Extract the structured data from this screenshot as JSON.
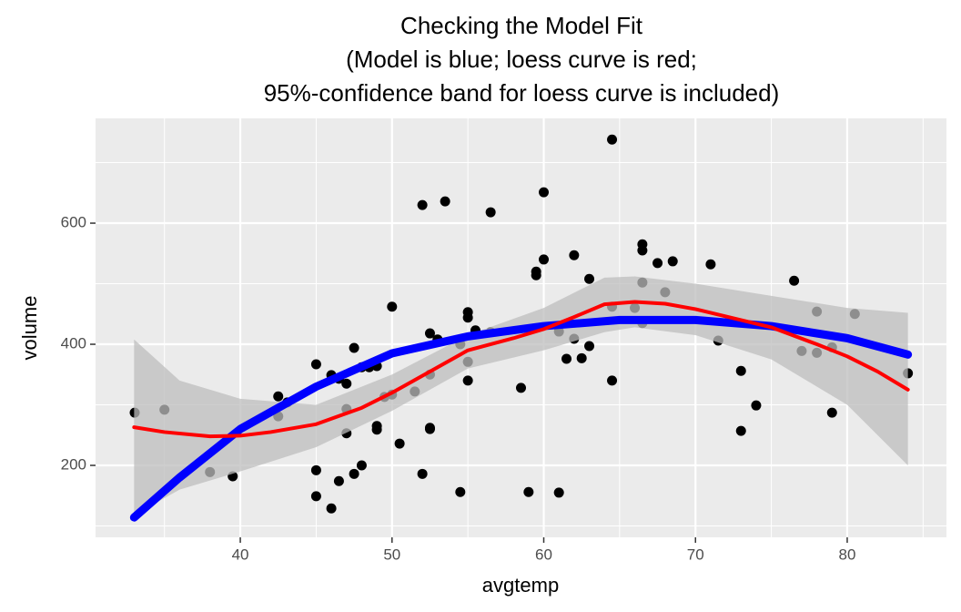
{
  "chart_data": {
    "type": "scatter",
    "title": [
      "Checking the Model Fit",
      "(Model is blue; loess curve is red;",
      "95%-confidence band for loess curve is included)"
    ],
    "x_label": "avgtemp",
    "y_label": "volume",
    "xlim": [
      30.46,
      86.54
    ],
    "ylim": [
      81.2,
      773
    ],
    "xticks": [
      40,
      50,
      60,
      70,
      80
    ],
    "yticks": [
      200,
      400,
      600
    ],
    "xminorticks": [
      35,
      45,
      55,
      65,
      75,
      85
    ],
    "yminorticks": [
      100,
      300,
      500,
      700
    ],
    "grid": true,
    "points": {
      "color": "#000000",
      "x": [
        33.04,
        35,
        38,
        39.5,
        42.5,
        42.5,
        43.1,
        45,
        45,
        45,
        46,
        46,
        46.5,
        46.5,
        47,
        47,
        47,
        47.5,
        47.5,
        48,
        48,
        48.5,
        49,
        49,
        49,
        49.5,
        50,
        50,
        50.5,
        51.5,
        52,
        52,
        52.5,
        52.5,
        52.5,
        52.5,
        53,
        53.5,
        54.5,
        54.5,
        55,
        55,
        55,
        55,
        55.5,
        56.5,
        56.5,
        58.5,
        59,
        59.5,
        59.5,
        60,
        60,
        61,
        61,
        61.5,
        62,
        62,
        62.5,
        63,
        63,
        64.5,
        64.5,
        64.5,
        66,
        66.5,
        66.5,
        66.5,
        66.5,
        67.5,
        68,
        68.5,
        71,
        71.5,
        73,
        73,
        74,
        76.5,
        77,
        78,
        78,
        79,
        79,
        80.5,
        84
      ],
      "y": [
        287,
        292,
        189,
        182,
        314,
        281,
        304,
        367,
        192,
        149,
        349,
        129,
        343,
        174,
        335,
        293,
        253,
        394,
        186,
        362,
        200,
        362,
        364,
        265,
        259,
        313,
        462,
        317,
        236,
        322,
        630,
        186,
        418,
        350,
        262,
        260,
        408,
        636,
        400,
        156,
        453,
        444,
        371,
        340,
        423,
        618,
        420,
        328,
        156,
        520,
        514,
        651,
        540,
        155,
        421,
        376,
        547,
        409,
        377,
        508,
        397,
        738,
        462,
        340,
        460,
        565,
        555,
        502,
        435,
        534,
        486,
        537,
        532,
        406,
        356,
        257,
        299,
        505,
        389,
        454,
        386,
        395,
        287,
        450,
        352
      ]
    },
    "band": {
      "color": "#bebebe",
      "x": [
        33,
        36,
        40,
        45,
        50,
        55,
        60,
        64,
        66,
        70,
        75,
        80,
        84
      ],
      "lower": [
        118,
        160,
        190,
        230,
        290,
        360,
        390,
        420,
        428,
        415,
        375,
        300,
        200
      ],
      "upper": [
        408,
        340,
        310,
        300,
        350,
        415,
        460,
        510,
        512,
        500,
        480,
        460,
        452
      ]
    },
    "lines": [
      {
        "color": "#0000ff",
        "width": 9,
        "x": [
          33,
          36,
          40,
          45,
          50,
          55,
          60,
          65,
          70,
          75,
          80,
          84
        ],
        "values": [
          114,
          180,
          260,
          330,
          385,
          413,
          430,
          440,
          440,
          430,
          410,
          383
        ]
      },
      {
        "color": "#ff0000",
        "width": 4,
        "x": [
          33,
          35,
          38,
          40,
          42,
          45,
          48,
          50,
          52,
          55,
          58,
          60,
          62,
          64,
          66,
          68,
          70,
          72,
          75,
          78,
          80,
          82,
          84
        ],
        "values": [
          263,
          255,
          248,
          249,
          255,
          268,
          295,
          320,
          348,
          390,
          410,
          425,
          445,
          466,
          470,
          467,
          458,
          446,
          428,
          400,
          380,
          355,
          325
        ]
      }
    ]
  }
}
